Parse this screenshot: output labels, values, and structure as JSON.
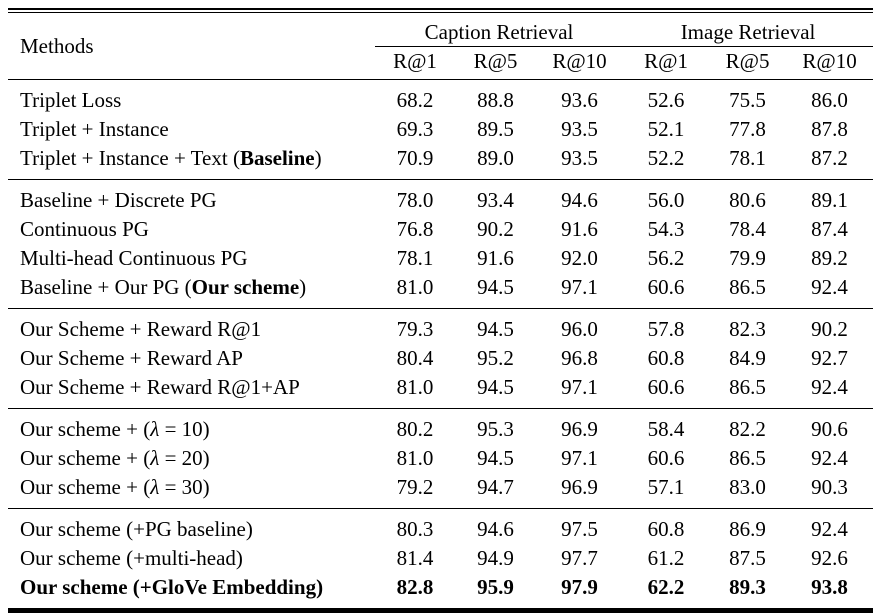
{
  "colors": {
    "text": "#000000",
    "background": "#ffffff",
    "rule": "#000000"
  },
  "table": {
    "methods_header": "Methods",
    "groups": [
      {
        "label": "Caption Retrieval",
        "cols": [
          "R@1",
          "R@5",
          "R@10"
        ]
      },
      {
        "label": "Image Retrieval",
        "cols": [
          "R@1",
          "R@5",
          "R@10"
        ]
      }
    ],
    "sections": [
      {
        "rows": [
          {
            "method": [
              {
                "t": "Triplet Loss"
              }
            ],
            "values": [
              "68.2",
              "88.8",
              "93.6",
              "52.6",
              "75.5",
              "86.0"
            ]
          },
          {
            "method": [
              {
                "t": "Triplet + Instance"
              }
            ],
            "values": [
              "69.3",
              "89.5",
              "93.5",
              "52.1",
              "77.8",
              "87.8"
            ]
          },
          {
            "method": [
              {
                "t": "Triplet + Instance + Text ("
              },
              {
                "t": "Baseline",
                "b": true
              },
              {
                "t": ")"
              }
            ],
            "values": [
              "70.9",
              "89.0",
              "93.5",
              "52.2",
              "78.1",
              "87.2"
            ]
          }
        ]
      },
      {
        "rows": [
          {
            "method": [
              {
                "t": "Baseline + Discrete PG"
              }
            ],
            "values": [
              "78.0",
              "93.4",
              "94.6",
              "56.0",
              "80.6",
              "89.1"
            ]
          },
          {
            "method": [
              {
                "t": "Continuous PG"
              }
            ],
            "values": [
              "76.8",
              "90.2",
              "91.6",
              "54.3",
              "78.4",
              "87.4"
            ]
          },
          {
            "method": [
              {
                "t": "Multi-head Continuous PG"
              }
            ],
            "values": [
              "78.1",
              "91.6",
              "92.0",
              "56.2",
              "79.9",
              "89.2"
            ]
          },
          {
            "method": [
              {
                "t": "Baseline + Our PG ("
              },
              {
                "t": "Our scheme",
                "b": true
              },
              {
                "t": ")"
              }
            ],
            "values": [
              "81.0",
              "94.5",
              "97.1",
              "60.6",
              "86.5",
              "92.4"
            ]
          }
        ]
      },
      {
        "rows": [
          {
            "method": [
              {
                "t": "Our Scheme + Reward R@1"
              }
            ],
            "values": [
              "79.3",
              "94.5",
              "96.0",
              "57.8",
              "82.3",
              "90.2"
            ]
          },
          {
            "method": [
              {
                "t": "Our Scheme + Reward AP"
              }
            ],
            "values": [
              "80.4",
              "95.2",
              "96.8",
              "60.8",
              "84.9",
              "92.7"
            ]
          },
          {
            "method": [
              {
                "t": "Our Scheme + Reward R@1+AP"
              }
            ],
            "values": [
              "81.0",
              "94.5",
              "97.1",
              "60.6",
              "86.5",
              "92.4"
            ]
          }
        ]
      },
      {
        "rows": [
          {
            "method": [
              {
                "t": "Our scheme + ("
              },
              {
                "t": "λ",
                "i": true
              },
              {
                "t": " = 10)"
              }
            ],
            "values": [
              "80.2",
              "95.3",
              "96.9",
              "58.4",
              "82.2",
              "90.6"
            ]
          },
          {
            "method": [
              {
                "t": "Our scheme + ("
              },
              {
                "t": "λ",
                "i": true
              },
              {
                "t": " = 20)"
              }
            ],
            "values": [
              "81.0",
              "94.5",
              "97.1",
              "60.6",
              "86.5",
              "92.4"
            ]
          },
          {
            "method": [
              {
                "t": "Our scheme + ("
              },
              {
                "t": "λ",
                "i": true
              },
              {
                "t": " = 30)"
              }
            ],
            "values": [
              "79.2",
              "94.7",
              "96.9",
              "57.1",
              "83.0",
              "90.3"
            ]
          }
        ]
      },
      {
        "rows": [
          {
            "method": [
              {
                "t": "Our scheme (+PG baseline)"
              }
            ],
            "values": [
              "80.3",
              "94.6",
              "97.5",
              "60.8",
              "86.9",
              "92.4"
            ]
          },
          {
            "method": [
              {
                "t": "Our scheme (+multi-head)"
              }
            ],
            "values": [
              "81.4",
              "94.9",
              "97.7",
              "61.2",
              "87.5",
              "92.6"
            ]
          },
          {
            "method": [
              {
                "t": "Our scheme (+GloVe Embedding)"
              }
            ],
            "values": [
              "82.8",
              "95.9",
              "97.9",
              "62.2",
              "89.3",
              "93.8"
            ],
            "bold": true
          }
        ]
      }
    ]
  }
}
